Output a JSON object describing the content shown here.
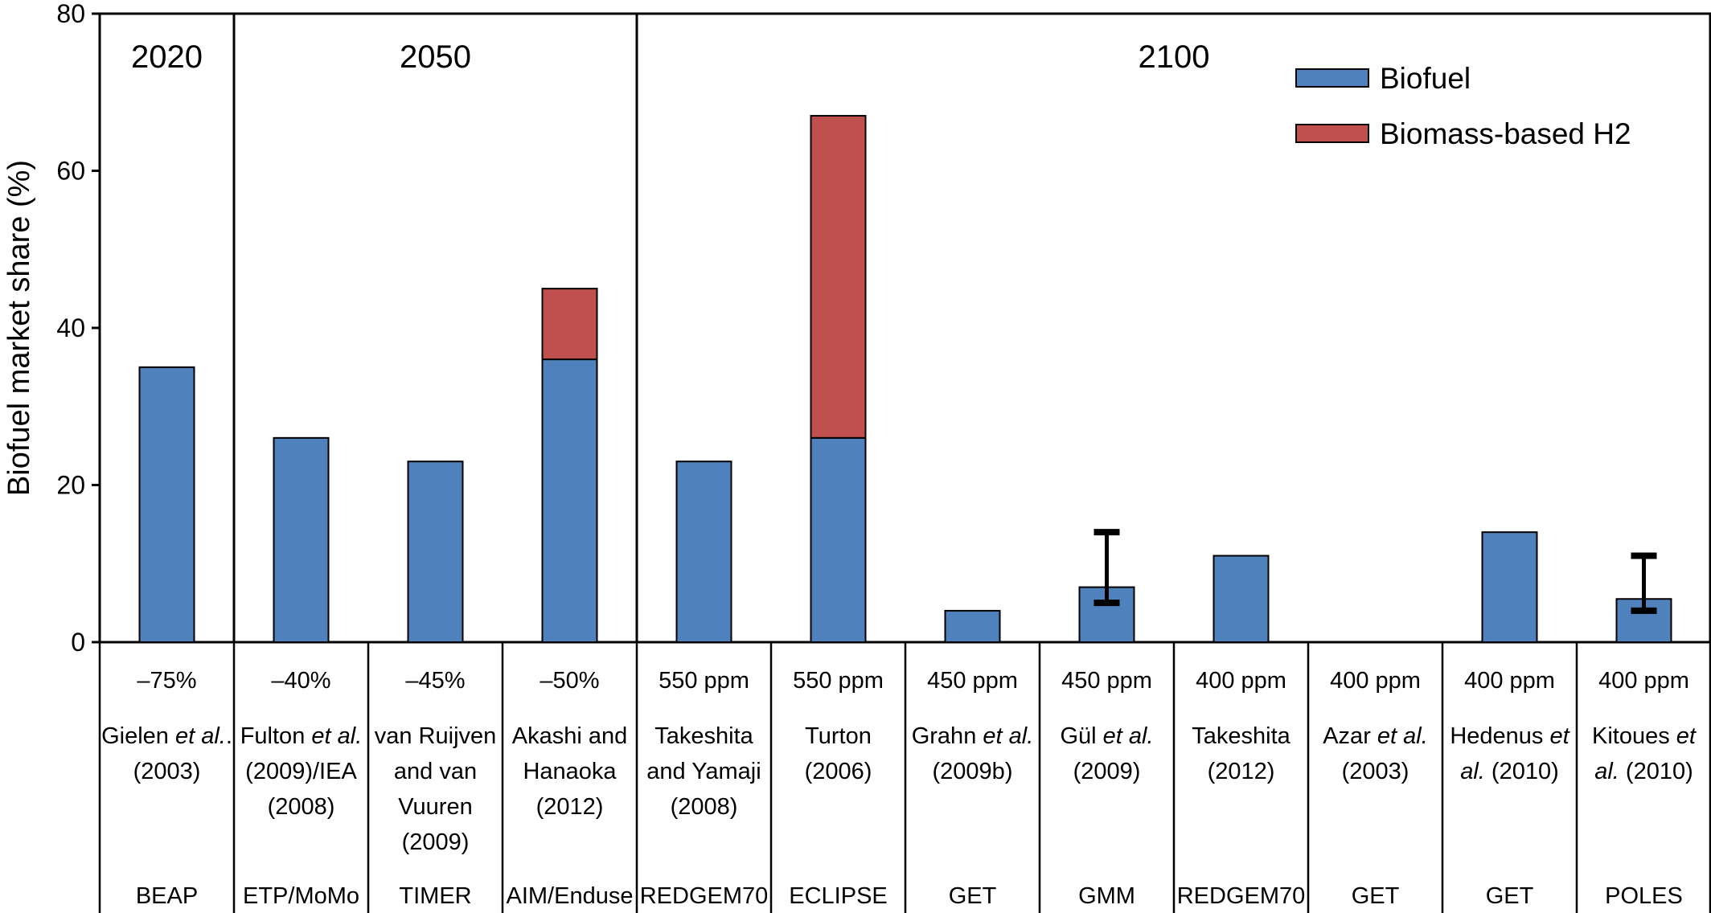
{
  "chart_data": {
    "type": "bar",
    "ylabel": "Biofuel market share (%)",
    "ylim": [
      0,
      80
    ],
    "yticks": [
      0,
      20,
      40,
      60,
      80
    ],
    "grid": false,
    "legend_placement": "top-right",
    "series": [
      {
        "name": "Biofuel",
        "color": "#4f81bd"
      },
      {
        "name": "Biomass-based H2",
        "color": "#c0504d"
      }
    ],
    "periods": [
      {
        "label": "2020",
        "count": 1
      },
      {
        "label": "2050",
        "count": 3
      },
      {
        "label": "2100",
        "count": 8
      }
    ],
    "columns": [
      {
        "target": "–75%",
        "study_lines": [
          [
            {
              "t": "Gielen "
            },
            {
              "t": "et al.",
              "i": true
            },
            {
              "t": "."
            }
          ],
          [
            {
              "t": "(2003)"
            }
          ]
        ],
        "model": "BEAP",
        "biofuel": 35,
        "h2": 0,
        "err": null
      },
      {
        "target": "–40%",
        "study_lines": [
          [
            {
              "t": "Fulton "
            },
            {
              "t": "et al.",
              "i": true
            }
          ],
          [
            {
              "t": "(2009)/IEA"
            }
          ],
          [
            {
              "t": "(2008)"
            }
          ]
        ],
        "model": "ETP/MoMo",
        "biofuel": 26,
        "h2": 0,
        "err": null
      },
      {
        "target": "–45%",
        "study_lines": [
          [
            {
              "t": "van Ruijven"
            }
          ],
          [
            {
              "t": "and van"
            }
          ],
          [
            {
              "t": "Vuuren"
            }
          ],
          [
            {
              "t": "(2009)"
            }
          ]
        ],
        "model": "TIMER",
        "biofuel": 23,
        "h2": 0,
        "err": null
      },
      {
        "target": "–50%",
        "study_lines": [
          [
            {
              "t": "Akashi and"
            }
          ],
          [
            {
              "t": "Hanaoka"
            }
          ],
          [
            {
              "t": "(2012)"
            }
          ]
        ],
        "model": "AIM/Enduse",
        "biofuel": 36,
        "h2": 9,
        "err": null
      },
      {
        "target": "550 ppm",
        "study_lines": [
          [
            {
              "t": "Takeshita"
            }
          ],
          [
            {
              "t": "and Yamaji"
            }
          ],
          [
            {
              "t": "(2008)"
            }
          ]
        ],
        "model": "REDGEM70",
        "biofuel": 23,
        "h2": 0,
        "err": null
      },
      {
        "target": "550 ppm",
        "study_lines": [
          [
            {
              "t": "Turton"
            }
          ],
          [
            {
              "t": "(2006)"
            }
          ]
        ],
        "model": "ECLIPSE",
        "biofuel": 26,
        "h2": 41,
        "err": null
      },
      {
        "target": "450 ppm",
        "study_lines": [
          [
            {
              "t": "Grahn "
            },
            {
              "t": "et al.",
              "i": true
            }
          ],
          [
            {
              "t": "(2009b)"
            }
          ]
        ],
        "model": "GET",
        "biofuel": 4,
        "h2": 0,
        "err": null
      },
      {
        "target": "450 ppm",
        "study_lines": [
          [
            {
              "t": "Gül "
            },
            {
              "t": "et al.",
              "i": true
            }
          ],
          [
            {
              "t": "(2009)"
            }
          ]
        ],
        "model": "GMM",
        "biofuel": 7,
        "h2": 0,
        "err": [
          5,
          14
        ]
      },
      {
        "target": "400 ppm",
        "study_lines": [
          [
            {
              "t": "Takeshita"
            }
          ],
          [
            {
              "t": "(2012)"
            }
          ]
        ],
        "model": "REDGEM70",
        "biofuel": 11,
        "h2": 0,
        "err": null
      },
      {
        "target": "400 ppm",
        "study_lines": [
          [
            {
              "t": "Azar "
            },
            {
              "t": "et al.",
              "i": true
            }
          ],
          [
            {
              "t": "(2003)"
            }
          ]
        ],
        "model": "GET",
        "biofuel": 0,
        "h2": 0,
        "err": null
      },
      {
        "target": "400 ppm",
        "study_lines": [
          [
            {
              "t": "Hedenus "
            },
            {
              "t": "et",
              "i": true
            }
          ],
          [
            {
              "t": "al.",
              "i": true
            },
            {
              "t": " (2010)"
            }
          ]
        ],
        "model": "GET",
        "biofuel": 14,
        "h2": 0,
        "err": null
      },
      {
        "target": "400 ppm",
        "study_lines": [
          [
            {
              "t": "Kitoues "
            },
            {
              "t": "et",
              "i": true
            }
          ],
          [
            {
              "t": "al.",
              "i": true
            },
            {
              "t": " (2010)"
            }
          ]
        ],
        "model": "POLES",
        "biofuel": 5.5,
        "h2": 0,
        "err": [
          4,
          11
        ]
      }
    ]
  }
}
